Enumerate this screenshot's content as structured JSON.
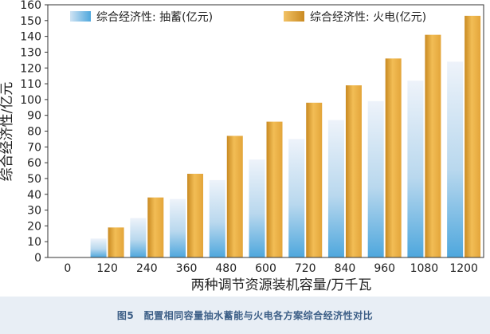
{
  "caption": "图5　配置相同容量抽水蓄能与火电各方案综合经济性对比",
  "chart_data": {
    "type": "bar",
    "categories": [
      "0",
      "120",
      "240",
      "360",
      "480",
      "600",
      "720",
      "840",
      "960",
      "1080",
      "1200"
    ],
    "series": [
      {
        "name": "综合经济性: 抽蓄(亿元)",
        "values": [
          0,
          12,
          25,
          37,
          49,
          62,
          75,
          87,
          99,
          112,
          124
        ],
        "color": "#5aaee0"
      },
      {
        "name": "综合经济性: 火电(亿元)",
        "values": [
          0,
          19,
          38,
          53,
          77,
          86,
          98,
          109,
          126,
          141,
          153
        ],
        "color": "#e8ae45"
      }
    ],
    "xlabel": "两种调节资源装机容量/万千瓦",
    "ylabel": "综合经济性/亿元",
    "ylim": [
      0,
      160
    ],
    "yticks": [
      0,
      10,
      20,
      30,
      40,
      50,
      60,
      70,
      80,
      90,
      100,
      110,
      120,
      130,
      140,
      150,
      160
    ],
    "grid": false,
    "legend": "top"
  }
}
